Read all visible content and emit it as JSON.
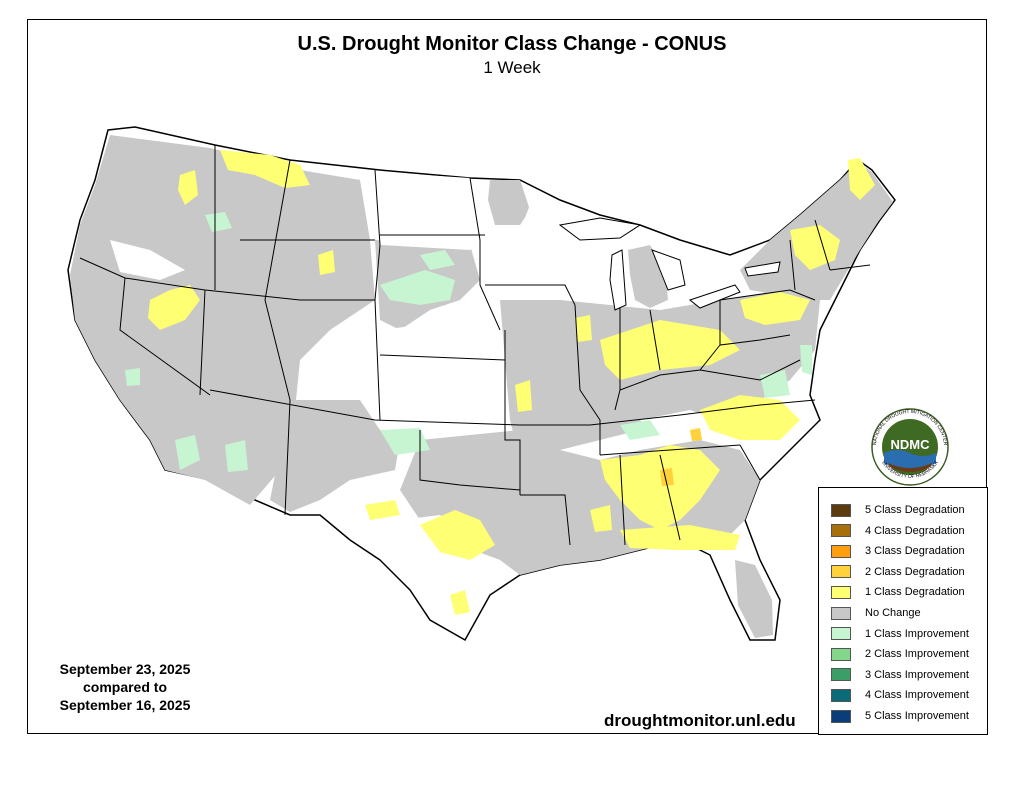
{
  "title": "U.S. Drought Monitor Class Change - CONUS",
  "subtitle": "1 Week",
  "dates": {
    "line1": "September 23, 2025",
    "line2": "compared to",
    "line3": "September 16, 2025"
  },
  "url": "droughtmonitor.unl.edu",
  "logo": {
    "center_text": "NDMC",
    "ring_top": "NATIONAL DROUGHT MITIGATION CENTER",
    "ring_bottom": "UNIVERSITY OF NEBRASKA"
  },
  "legend": [
    {
      "label": "5 Class Degradation",
      "color": "#5c3a0e"
    },
    {
      "label": "4 Class Degradation",
      "color": "#a8700a"
    },
    {
      "label": "3 Class Degradation",
      "color": "#ff9f0f"
    },
    {
      "label": "2 Class Degradation",
      "color": "#ffd23c"
    },
    {
      "label": "1 Class Degradation",
      "color": "#ffff73"
    },
    {
      "label": "No Change",
      "color": "#c8c8c8"
    },
    {
      "label": "1 Class Improvement",
      "color": "#c7f5d1"
    },
    {
      "label": "2 Class Improvement",
      "color": "#84d68b"
    },
    {
      "label": "3 Class Improvement",
      "color": "#3a9e66"
    },
    {
      "label": "4 Class Improvement",
      "color": "#0c6b78"
    },
    {
      "label": "5 Class Improvement",
      "color": "#0a3d7a"
    }
  ]
}
